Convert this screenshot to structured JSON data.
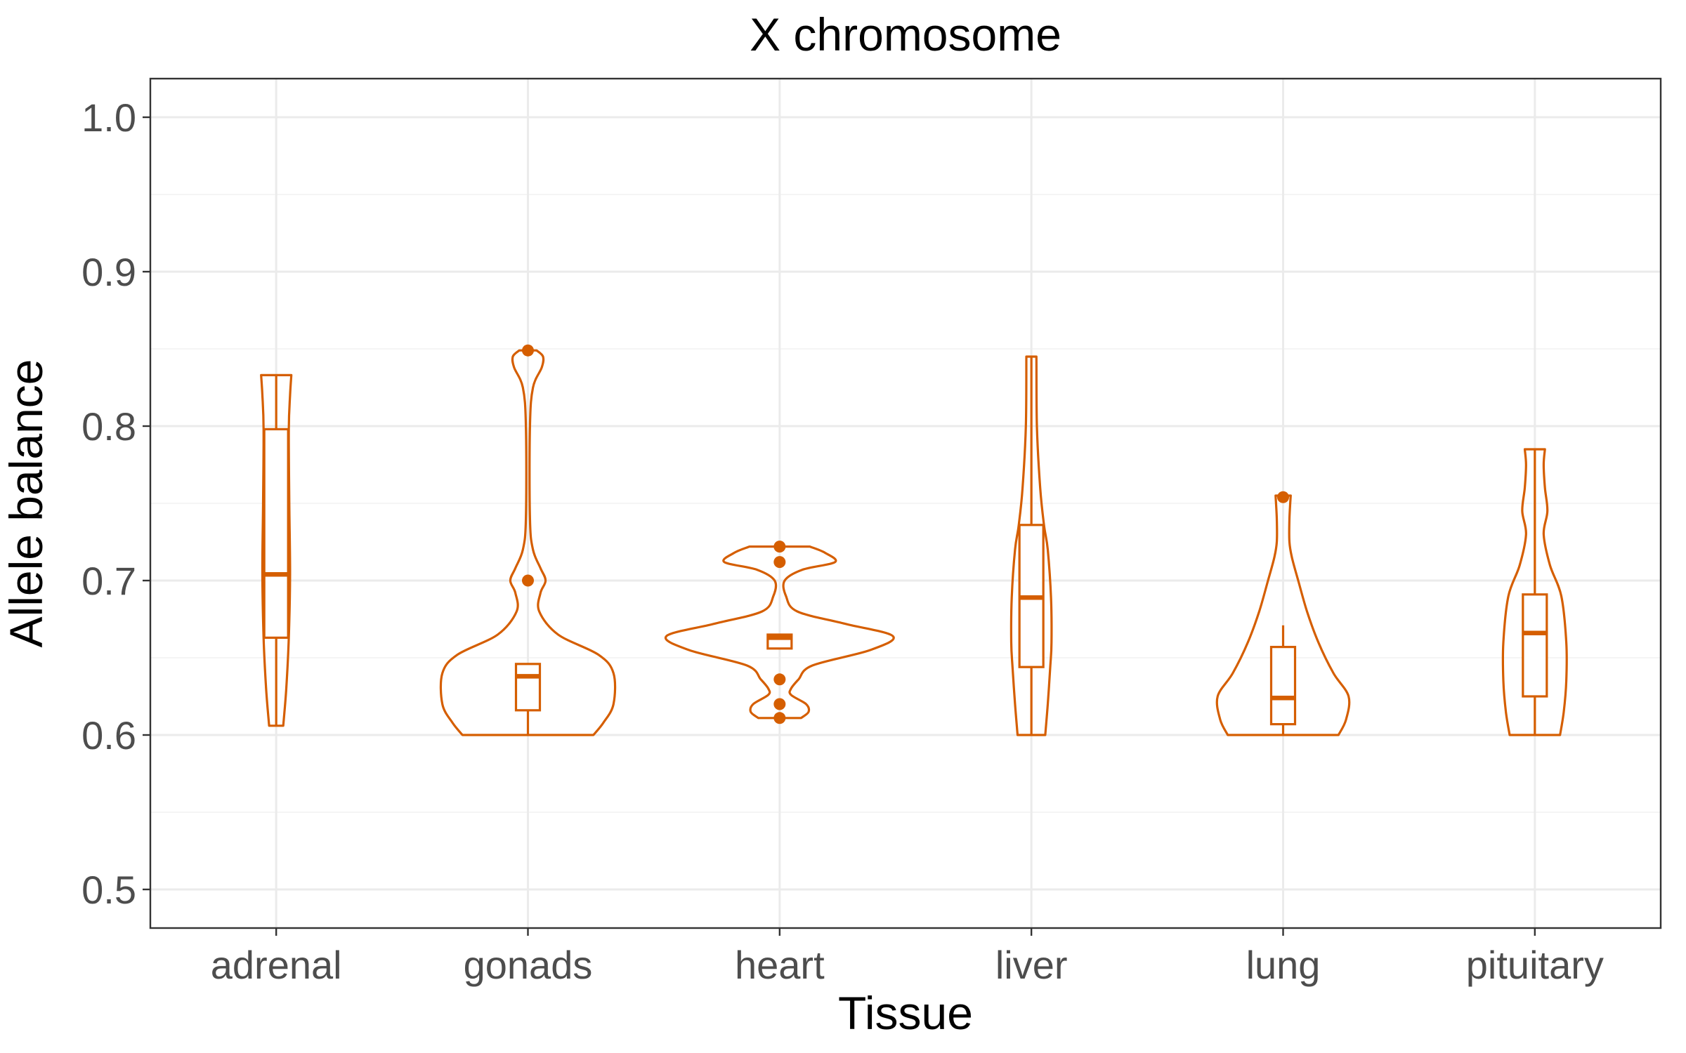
{
  "chart_data": {
    "type": "violin",
    "title": "X chromosome",
    "xlabel": "Tissue",
    "ylabel": "Allele balance",
    "ylim": [
      0.475,
      1.025
    ],
    "yticks": [
      "0.5",
      "0.6",
      "0.7",
      "0.8",
      "0.9",
      "1.0"
    ],
    "grid": true,
    "legend": "none",
    "color": "#d55e00",
    "categories": [
      "adrenal",
      "gonads",
      "heart",
      "liver",
      "lung",
      "pituitary"
    ],
    "groups": [
      {
        "tissue": "adrenal",
        "box": {
          "q1": 0.663,
          "median": 0.704,
          "q3": 0.798,
          "whisker_low": 0.606,
          "whisker_high": 0.833
        },
        "outliers": [],
        "density": [
          [
            0.606,
            0.28
          ],
          [
            0.63,
            0.4
          ],
          [
            0.663,
            0.5
          ],
          [
            0.704,
            0.55
          ],
          [
            0.75,
            0.52
          ],
          [
            0.798,
            0.5
          ],
          [
            0.82,
            0.55
          ],
          [
            0.833,
            0.6
          ]
        ]
      },
      {
        "tissue": "gonads",
        "box": {
          "q1": 0.616,
          "median": 0.638,
          "q3": 0.646,
          "whisker_low": 0.6,
          "whisker_high": 0.646
        },
        "outliers": [
          0.7,
          0.849
        ],
        "density": [
          [
            0.6,
            2.6
          ],
          [
            0.608,
            3.0
          ],
          [
            0.62,
            3.4
          ],
          [
            0.64,
            3.4
          ],
          [
            0.652,
            2.8
          ],
          [
            0.665,
            1.2
          ],
          [
            0.68,
            0.45
          ],
          [
            0.692,
            0.5
          ],
          [
            0.7,
            0.7
          ],
          [
            0.708,
            0.5
          ],
          [
            0.72,
            0.2
          ],
          [
            0.74,
            0.08
          ],
          [
            0.8,
            0.08
          ],
          [
            0.825,
            0.2
          ],
          [
            0.838,
            0.55
          ],
          [
            0.845,
            0.6
          ],
          [
            0.849,
            0.35
          ]
        ]
      },
      {
        "tissue": "heart",
        "box": {
          "q1": 0.656,
          "median": 0.663,
          "q3": 0.665,
          "whisker_low": 0.656,
          "whisker_high": 0.665
        },
        "outliers": [
          0.611,
          0.62,
          0.636,
          0.712,
          0.722
        ],
        "density": [
          [
            0.611,
            0.85
          ],
          [
            0.615,
            1.15
          ],
          [
            0.62,
            1.05
          ],
          [
            0.626,
            0.45
          ],
          [
            0.63,
            0.45
          ],
          [
            0.636,
            0.75
          ],
          [
            0.645,
            1.3
          ],
          [
            0.655,
            3.6
          ],
          [
            0.664,
            4.5
          ],
          [
            0.672,
            2.6
          ],
          [
            0.68,
            0.7
          ],
          [
            0.69,
            0.25
          ],
          [
            0.7,
            0.2
          ],
          [
            0.707,
            0.9
          ],
          [
            0.712,
            2.2
          ],
          [
            0.718,
            1.8
          ],
          [
            0.722,
            1.2
          ]
        ]
      },
      {
        "tissue": "liver",
        "box": {
          "q1": 0.644,
          "median": 0.689,
          "q3": 0.736,
          "whisker_low": 0.6,
          "whisker_high": 0.845
        },
        "outliers": [],
        "density": [
          [
            0.6,
            0.55
          ],
          [
            0.62,
            0.65
          ],
          [
            0.644,
            0.75
          ],
          [
            0.66,
            0.8
          ],
          [
            0.689,
            0.78
          ],
          [
            0.72,
            0.65
          ],
          [
            0.736,
            0.5
          ],
          [
            0.76,
            0.35
          ],
          [
            0.8,
            0.22
          ],
          [
            0.845,
            0.2
          ]
        ]
      },
      {
        "tissue": "lung",
        "box": {
          "q1": 0.607,
          "median": 0.624,
          "q3": 0.657,
          "whisker_low": 0.6,
          "whisker_high": 0.671
        },
        "outliers": [
          0.754
        ],
        "density": [
          [
            0.6,
            2.2
          ],
          [
            0.61,
            2.5
          ],
          [
            0.625,
            2.6
          ],
          [
            0.64,
            2.0
          ],
          [
            0.66,
            1.4
          ],
          [
            0.68,
            0.95
          ],
          [
            0.7,
            0.6
          ],
          [
            0.715,
            0.35
          ],
          [
            0.725,
            0.25
          ],
          [
            0.74,
            0.25
          ],
          [
            0.755,
            0.3
          ]
        ]
      },
      {
        "tissue": "pituitary",
        "box": {
          "q1": 0.625,
          "median": 0.666,
          "q3": 0.691,
          "whisker_low": 0.6,
          "whisker_high": 0.785
        },
        "outliers": [],
        "density": [
          [
            0.6,
            1.0
          ],
          [
            0.615,
            1.15
          ],
          [
            0.635,
            1.25
          ],
          [
            0.66,
            1.25
          ],
          [
            0.69,
            1.05
          ],
          [
            0.71,
            0.6
          ],
          [
            0.73,
            0.35
          ],
          [
            0.745,
            0.5
          ],
          [
            0.76,
            0.4
          ],
          [
            0.775,
            0.35
          ],
          [
            0.785,
            0.4
          ]
        ]
      }
    ]
  }
}
